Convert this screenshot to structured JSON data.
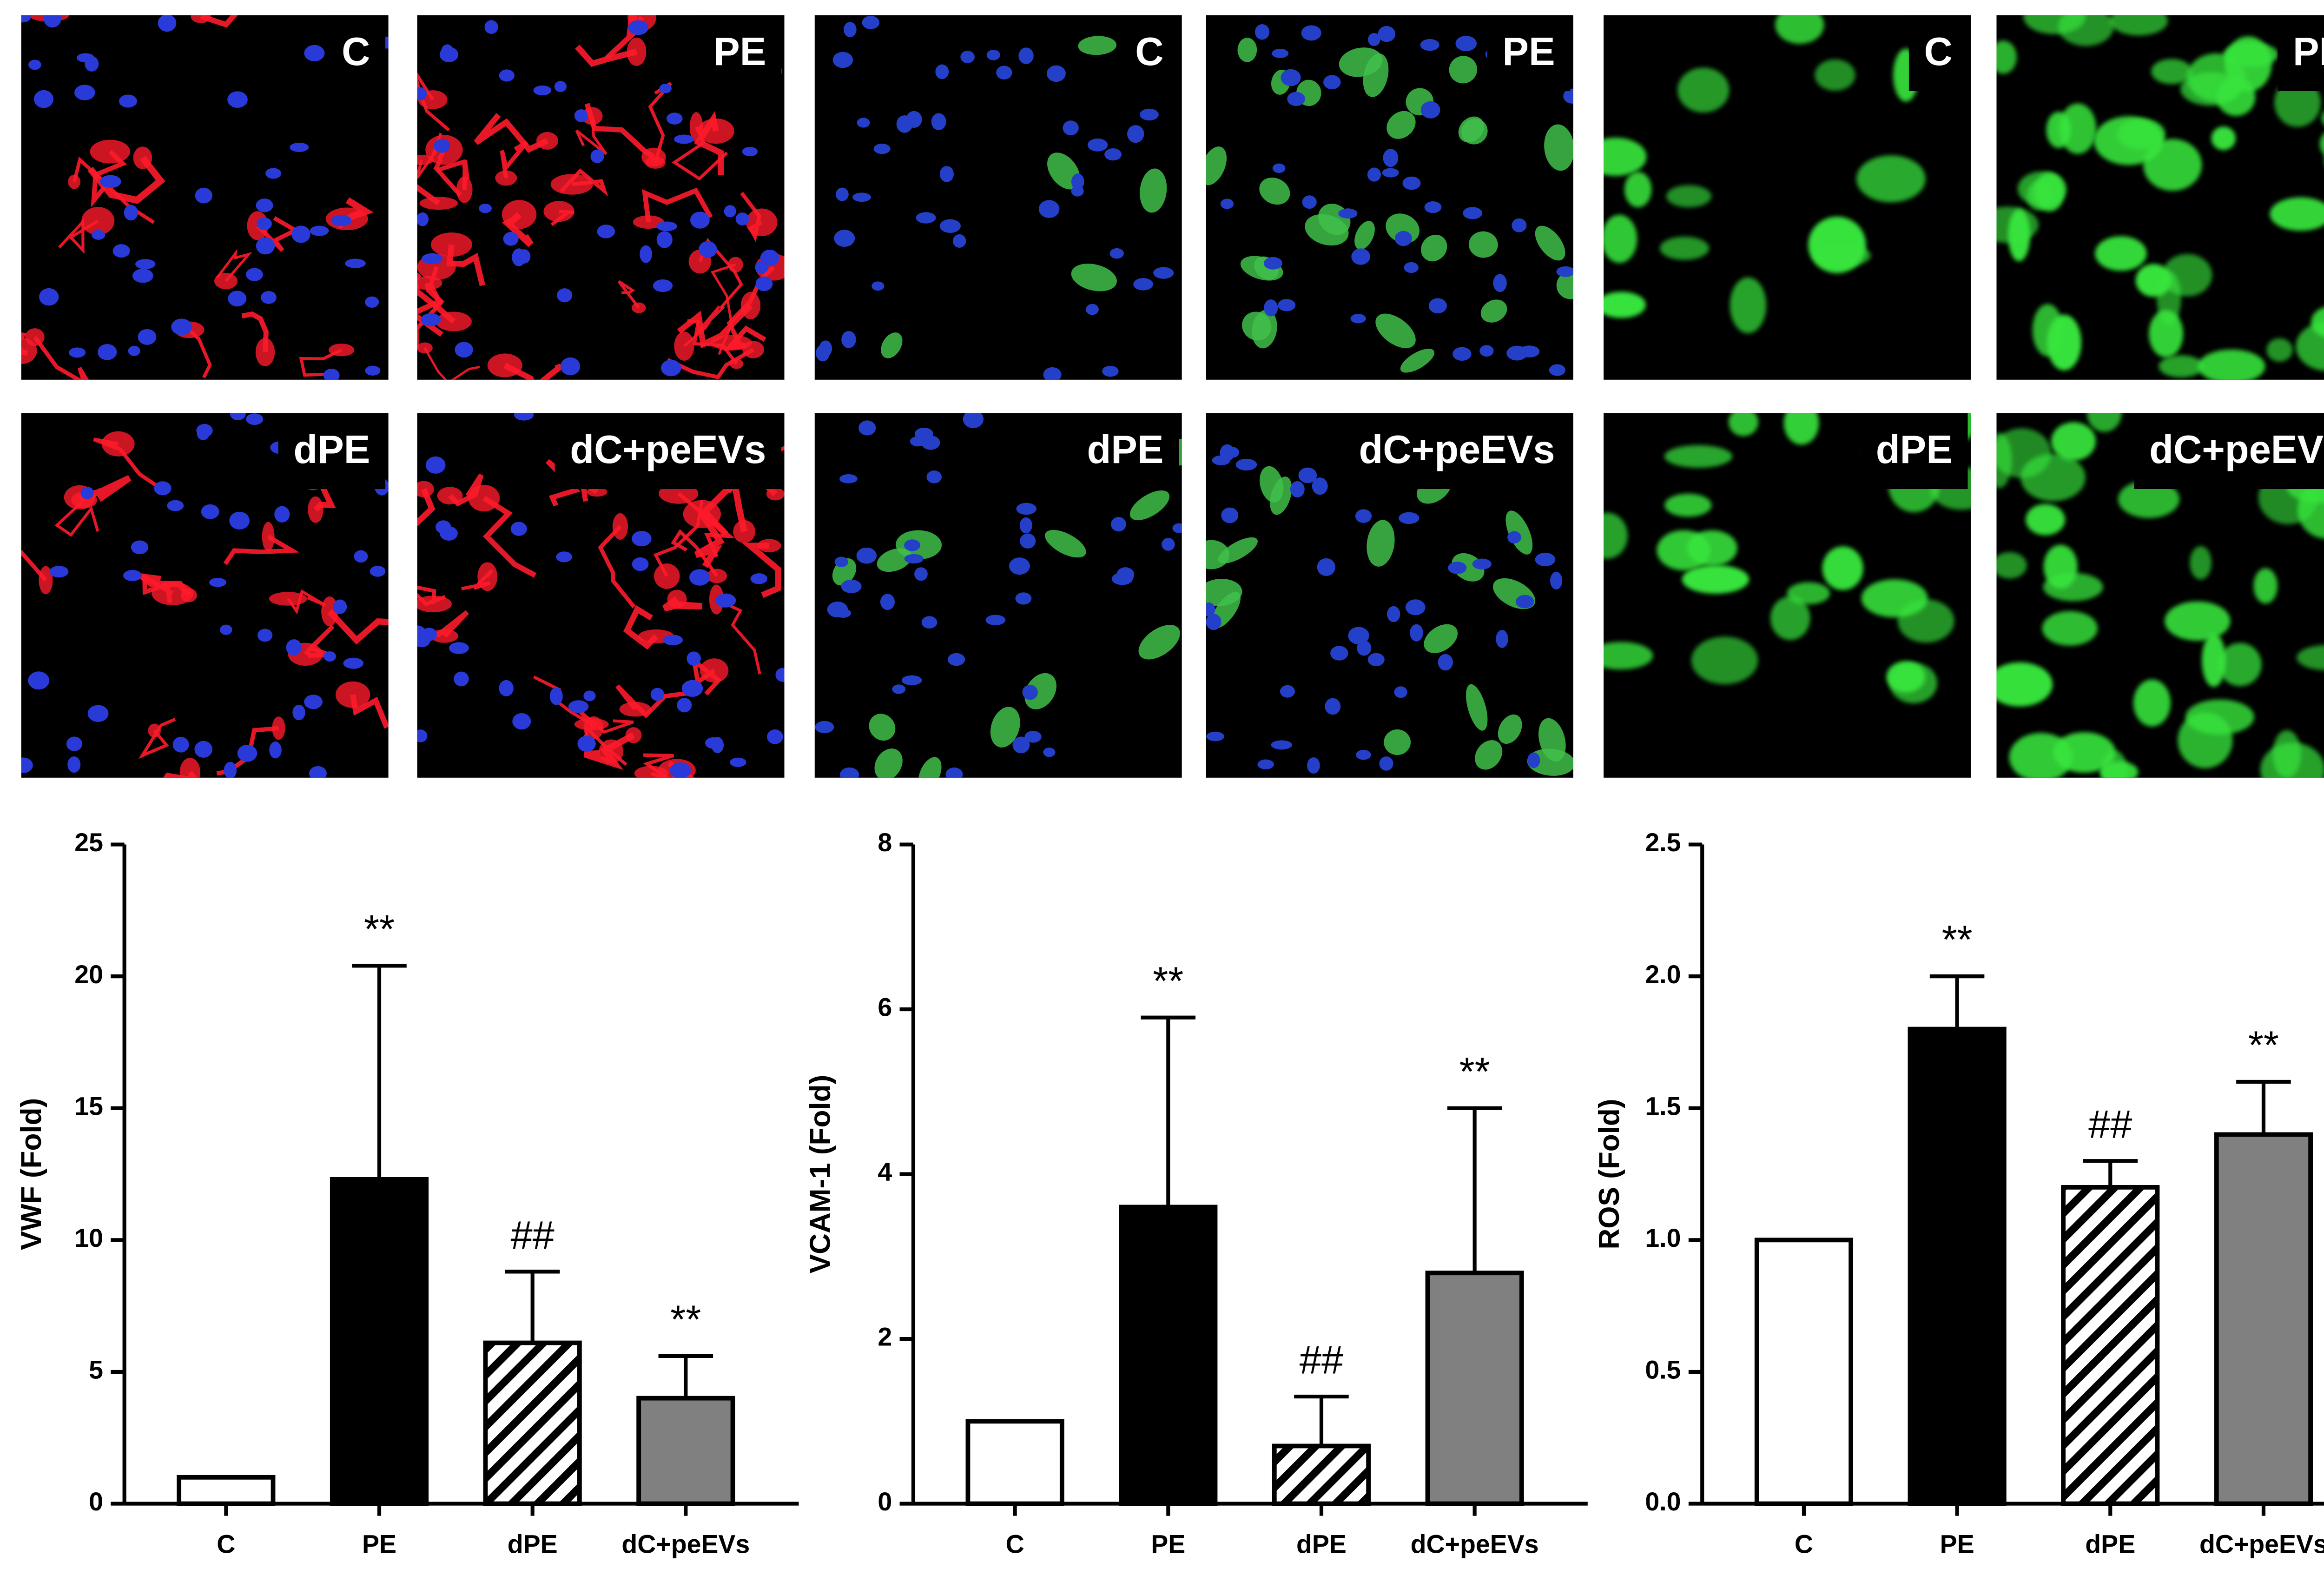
{
  "image_panels": [
    {
      "labels": [
        "C",
        "PE",
        "dPE",
        "dC+peEVs"
      ]
    },
    {
      "labels": [
        "C",
        "PE",
        "dPE",
        "dC+peEVs"
      ]
    },
    {
      "labels": [
        "C",
        "PE",
        "dPE",
        "dC+peEVs"
      ]
    }
  ],
  "chart_data": [
    {
      "type": "bar",
      "y_label": "VWF (Fold)",
      "categories": [
        "C",
        "PE",
        "dPE",
        "dC+peEVs"
      ],
      "values": [
        1,
        12.3,
        6.1,
        4.0
      ],
      "errors": [
        0,
        8.1,
        2.7,
        1.6
      ],
      "annotations": [
        null,
        "**",
        "##",
        "**"
      ],
      "colors": [
        "#ffffff",
        "#000000",
        "#ffffff",
        "#808080"
      ],
      "hatch": [
        false,
        false,
        true,
        false
      ],
      "ylim": [
        0,
        25
      ],
      "yticks": [
        0,
        5,
        10,
        15,
        20,
        25
      ]
    },
    {
      "type": "bar",
      "y_label": "VCAM-1 (Fold)",
      "categories": [
        "C",
        "PE",
        "dPE",
        "dC+peEVs"
      ],
      "values": [
        1,
        3.6,
        0.7,
        2.8
      ],
      "errors": [
        0,
        2.3,
        0.6,
        2.0
      ],
      "annotations": [
        null,
        "**",
        "##",
        "**"
      ],
      "colors": [
        "#ffffff",
        "#000000",
        "#ffffff",
        "#808080"
      ],
      "hatch": [
        false,
        false,
        true,
        false
      ],
      "ylim": [
        0,
        8
      ],
      "yticks": [
        0,
        2,
        4,
        6,
        8
      ]
    },
    {
      "type": "bar",
      "y_label": "ROS (Fold)",
      "categories": [
        "C",
        "PE",
        "dPE",
        "dC+peEVs"
      ],
      "values": [
        1.0,
        1.8,
        1.2,
        1.4
      ],
      "errors": [
        0,
        0.2,
        0.1,
        0.2
      ],
      "annotations": [
        null,
        "**",
        "##",
        "**"
      ],
      "colors": [
        "#ffffff",
        "#000000",
        "#ffffff",
        "#808080"
      ],
      "hatch": [
        false,
        false,
        true,
        false
      ],
      "ylim": [
        0,
        2.5
      ],
      "yticks": [
        {
          "value": 0,
          "label": "0.0"
        },
        0.5,
        {
          "value": 1,
          "label": "1.0"
        },
        1.5,
        {
          "value": 2,
          "label": "2.0"
        },
        2.5
      ]
    }
  ]
}
